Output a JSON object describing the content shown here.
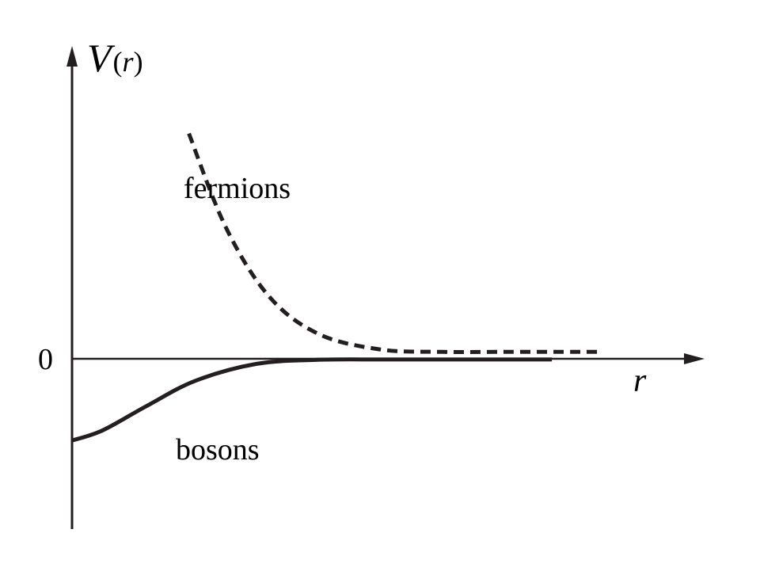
{
  "chart_data": {
    "type": "line",
    "ylabel": {
      "symbol": "V",
      "open": "(",
      "arg": "r",
      "close": ")"
    },
    "xlabel": "r",
    "y_ticks": [
      {
        "value": 0,
        "label": "0"
      }
    ],
    "xlim": [
      0,
      1
    ],
    "ylim": [
      -1,
      1
    ],
    "grid": false,
    "legend": "none",
    "series": [
      {
        "name": "fermions",
        "style": "dashed",
        "color": "#231f20",
        "x": [
          0.19,
          0.25,
          0.32,
          0.4,
          0.5,
          0.6,
          0.7,
          0.8,
          0.86
        ],
        "y": [
          0.72,
          0.42,
          0.2,
          0.08,
          0.03,
          0.022,
          0.022,
          0.022,
          0.022
        ]
      },
      {
        "name": "bosons",
        "style": "solid",
        "color": "#231f20",
        "x": [
          0.0,
          0.05,
          0.12,
          0.2,
          0.3,
          0.4,
          0.5,
          0.6,
          0.7,
          0.78
        ],
        "y": [
          -0.48,
          -0.42,
          -0.28,
          -0.13,
          -0.03,
          -0.006,
          -0.004,
          -0.004,
          -0.004,
          -0.004
        ]
      }
    ]
  }
}
